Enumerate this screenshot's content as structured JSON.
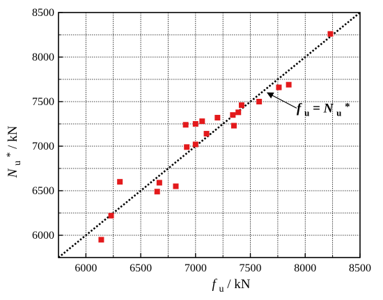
{
  "chart_data": {
    "type": "scatter",
    "title": "",
    "xlabel": {
      "main": "f",
      "sub": "u",
      "unit": " / kN"
    },
    "ylabel": {
      "main": "N",
      "sub": "u",
      "sup": "*",
      "unit": " / kN"
    },
    "xlim": [
      5750,
      8500
    ],
    "ylim": [
      5750,
      8500
    ],
    "x_ticks": [
      6000,
      6500,
      7000,
      7500,
      8000,
      8500
    ],
    "y_ticks": [
      6000,
      6500,
      7000,
      7500,
      8000,
      8500
    ],
    "x_tick_labels": [
      "6000",
      "6500",
      "7000",
      "7500",
      "8000",
      "8500"
    ],
    "y_tick_labels": [
      "6000",
      "6500",
      "7000",
      "7500",
      "8000",
      "8500"
    ],
    "grid": true,
    "reference_line": {
      "x": [
        5750,
        8500
      ],
      "y": [
        5750,
        8500
      ],
      "style": "dotted",
      "color": "#000000"
    },
    "annotation": {
      "lhs_main": "f",
      "lhs_sub": "u",
      "eq": "=",
      "rhs_main": "N",
      "rhs_sub": "u",
      "rhs_sup": "*",
      "arrow_target": [
        7630,
        7630
      ]
    },
    "marker_color": "#e31a1c",
    "series": [
      {
        "points": [
          [
            6140,
            5950
          ],
          [
            6230,
            6220
          ],
          [
            6310,
            6600
          ],
          [
            6650,
            6490
          ],
          [
            6670,
            6590
          ],
          [
            6820,
            6550
          ],
          [
            6910,
            7240
          ],
          [
            6920,
            6990
          ],
          [
            7000,
            7020
          ],
          [
            7000,
            7250
          ],
          [
            7060,
            7280
          ],
          [
            7100,
            7140
          ],
          [
            7200,
            7320
          ],
          [
            7340,
            7350
          ],
          [
            7350,
            7230
          ],
          [
            7390,
            7380
          ],
          [
            7420,
            7460
          ],
          [
            7580,
            7500
          ],
          [
            7760,
            7660
          ],
          [
            7850,
            7690
          ],
          [
            8230,
            8260
          ]
        ]
      }
    ]
  }
}
